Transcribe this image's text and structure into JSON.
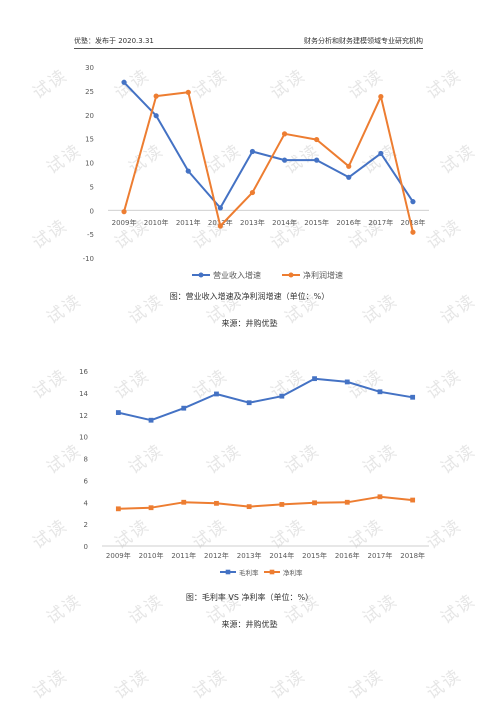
{
  "header": {
    "left": "优塾：发布于 2020.3.31",
    "right": "财务分析和财务建模领域专业研究机构"
  },
  "watermark": "试读",
  "figure1": {
    "caption": "图：营业收入增速及净利润增速（单位：%）",
    "source": "来源：井购优塾"
  },
  "figure2": {
    "caption": "图：毛利率 VS 净利率（单位：%）",
    "source": "来源：井购优塾"
  },
  "chart_data": [
    {
      "type": "line",
      "categories": [
        "2009年",
        "2010年",
        "2011年",
        "2012年",
        "2013年",
        "2014年",
        "2015年",
        "2016年",
        "2017年",
        "2018年"
      ],
      "series": [
        {
          "name": "营业收入增速",
          "color": "#4472c4",
          "values": [
            26.8,
            19.8,
            8.2,
            0.5,
            12.3,
            10.5,
            10.5,
            6.9,
            11.9,
            1.8
          ]
        },
        {
          "name": "净利润增速",
          "color": "#ed7d31",
          "values": [
            -0.3,
            23.9,
            24.7,
            -3.3,
            3.7,
            16.0,
            14.8,
            9.2,
            23.8,
            -4.6
          ]
        }
      ],
      "ylim": [
        -10,
        30
      ],
      "yticks": [
        -10,
        -5,
        0,
        5,
        10,
        15,
        20,
        25,
        30
      ],
      "grid": false,
      "legend": "bottom"
    },
    {
      "type": "line",
      "categories": [
        "2009年",
        "2010年",
        "2011年",
        "2012年",
        "2013年",
        "2014年",
        "2015年",
        "2016年",
        "2017年",
        "2018年"
      ],
      "series": [
        {
          "name": "毛利率",
          "color": "#4472c4",
          "values": [
            12.2,
            11.5,
            12.6,
            13.9,
            13.1,
            13.7,
            15.3,
            15.0,
            14.1,
            13.6
          ]
        },
        {
          "name": "净利率",
          "color": "#ed7d31",
          "values": [
            3.4,
            3.5,
            4.0,
            3.9,
            3.6,
            3.8,
            3.95,
            4.0,
            4.5,
            4.2
          ]
        }
      ],
      "ylim": [
        0,
        16
      ],
      "yticks": [
        0,
        2,
        4,
        6,
        8,
        10,
        12,
        14,
        16
      ],
      "grid": false,
      "legend": "bottom"
    }
  ]
}
